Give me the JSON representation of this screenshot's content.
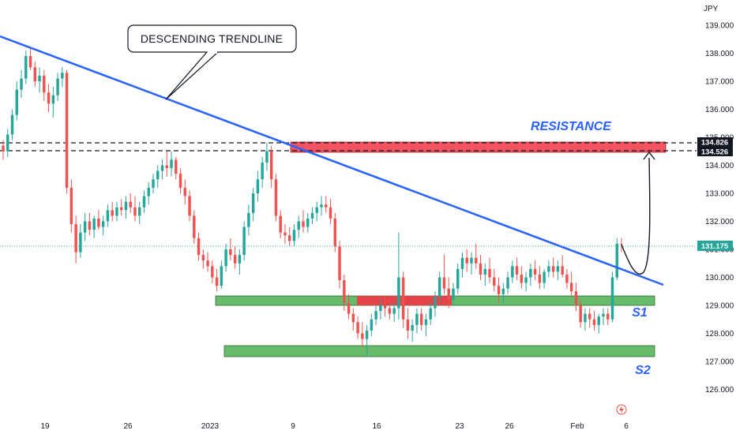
{
  "chart_data": {
    "type": "candlestick",
    "currency_label": "JPY",
    "y_ticks": [
      "126.000",
      "127.000",
      "128.000",
      "129.000",
      "130.000",
      "131.000",
      "132.000",
      "133.000",
      "134.000",
      "135.000",
      "136.000",
      "137.000",
      "138.000",
      "139.000"
    ],
    "y_range": [
      125.4,
      139.6
    ],
    "x_labels": [
      "19",
      "26",
      "2023",
      "9",
      "16",
      "23",
      "26",
      "Feb",
      "6"
    ],
    "price_tags": {
      "current": "131.175",
      "resistance_top": "134.826",
      "resistance_bottom": "134.526"
    },
    "colors": {
      "up": "#26a69a",
      "down": "#ef5350",
      "trendline": "#2962ff",
      "resistance_zone": "#f23645",
      "support_zone": "#4caf50",
      "annotation_text": "#2962ff"
    },
    "annotations": {
      "trendline_label": "DESCENDING TRENDLINE",
      "resistance": "RESISTANCE",
      "support_1": "S1",
      "support_2": "S2"
    },
    "levels": {
      "resistance_zone": [
        134.526,
        134.826
      ],
      "support_1_zone": [
        129.05,
        129.35
      ],
      "support_2_zone": [
        127.2,
        127.6
      ],
      "trendline": {
        "start_price": 138.6,
        "end_price": 129.8
      }
    },
    "grid": false,
    "legend": "none",
    "candles": [
      [
        134.7,
        134.9,
        134.2,
        134.5
      ],
      [
        134.5,
        135.3,
        134.3,
        135.1
      ],
      [
        135.1,
        136.0,
        134.9,
        135.8
      ],
      [
        135.8,
        137.0,
        135.6,
        136.7
      ],
      [
        136.7,
        137.4,
        136.4,
        137.1
      ],
      [
        137.1,
        138.1,
        136.9,
        137.9
      ],
      [
        137.9,
        138.2,
        137.4,
        137.5
      ],
      [
        137.5,
        137.7,
        136.8,
        137.0
      ],
      [
        137.0,
        137.5,
        136.6,
        137.2
      ],
      [
        137.2,
        137.4,
        136.3,
        136.6
      ],
      [
        136.6,
        136.9,
        135.9,
        136.2
      ],
      [
        136.2,
        136.8,
        135.7,
        136.5
      ],
      [
        136.5,
        137.3,
        136.3,
        137.1
      ],
      [
        137.1,
        137.5,
        136.8,
        137.3
      ],
      [
        137.3,
        137.4,
        133.0,
        133.2
      ],
      [
        133.2,
        133.5,
        131.6,
        131.9
      ],
      [
        131.9,
        132.2,
        130.5,
        130.9
      ],
      [
        130.9,
        131.9,
        130.7,
        131.6
      ],
      [
        131.6,
        132.3,
        131.3,
        132.0
      ],
      [
        132.0,
        132.3,
        131.5,
        131.7
      ],
      [
        131.7,
        132.2,
        131.4,
        132.1
      ],
      [
        132.1,
        132.4,
        131.7,
        131.8
      ],
      [
        131.8,
        132.2,
        131.5,
        132.0
      ],
      [
        132.0,
        132.6,
        131.8,
        132.4
      ],
      [
        132.4,
        132.7,
        132.0,
        132.2
      ],
      [
        132.2,
        132.7,
        132.0,
        132.5
      ],
      [
        132.5,
        132.8,
        132.2,
        132.4
      ],
      [
        132.4,
        132.9,
        132.1,
        132.7
      ],
      [
        132.7,
        133.0,
        132.3,
        132.5
      ],
      [
        132.5,
        132.9,
        132.0,
        132.2
      ],
      [
        132.2,
        132.7,
        131.9,
        132.5
      ],
      [
        132.5,
        133.1,
        132.3,
        132.9
      ],
      [
        132.9,
        133.4,
        132.6,
        133.2
      ],
      [
        133.2,
        133.7,
        133.0,
        133.5
      ],
      [
        133.5,
        134.0,
        133.2,
        133.8
      ],
      [
        133.8,
        134.2,
        133.5,
        134.0
      ],
      [
        134.0,
        134.5,
        133.6,
        133.9
      ],
      [
        133.9,
        134.5,
        133.6,
        134.2
      ],
      [
        134.2,
        134.3,
        133.5,
        133.7
      ],
      [
        133.7,
        133.9,
        133.0,
        133.2
      ],
      [
        133.2,
        133.5,
        132.6,
        132.9
      ],
      [
        132.9,
        133.1,
        132.0,
        132.2
      ],
      [
        132.2,
        132.4,
        131.2,
        131.4
      ],
      [
        131.4,
        131.6,
        130.6,
        130.8
      ],
      [
        130.8,
        131.0,
        130.3,
        130.6
      ],
      [
        130.6,
        130.9,
        130.2,
        130.4
      ],
      [
        130.4,
        130.6,
        129.8,
        130.0
      ],
      [
        130.0,
        130.3,
        129.5,
        129.7
      ],
      [
        129.7,
        130.6,
        129.6,
        130.4
      ],
      [
        130.4,
        131.2,
        130.2,
        131.0
      ],
      [
        131.0,
        131.4,
        130.6,
        130.8
      ],
      [
        130.8,
        131.1,
        130.3,
        130.5
      ],
      [
        130.5,
        131.0,
        130.1,
        130.8
      ],
      [
        130.8,
        132.0,
        130.6,
        131.8
      ],
      [
        131.8,
        132.6,
        131.5,
        132.3
      ],
      [
        132.3,
        133.2,
        132.0,
        133.0
      ],
      [
        133.0,
        133.8,
        132.7,
        133.5
      ],
      [
        133.5,
        134.3,
        133.2,
        134.1
      ],
      [
        134.1,
        134.8,
        133.8,
        134.5
      ],
      [
        134.5,
        134.7,
        133.2,
        133.5
      ],
      [
        133.5,
        133.7,
        132.0,
        132.2
      ],
      [
        132.2,
        132.4,
        131.4,
        131.6
      ],
      [
        131.6,
        131.9,
        131.2,
        131.5
      ],
      [
        131.5,
        131.8,
        131.1,
        131.3
      ],
      [
        131.3,
        131.9,
        131.1,
        131.7
      ],
      [
        131.7,
        132.2,
        131.4,
        132.0
      ],
      [
        132.0,
        132.4,
        131.6,
        131.8
      ],
      [
        131.8,
        132.3,
        131.6,
        132.1
      ],
      [
        132.1,
        132.5,
        131.9,
        132.3
      ],
      [
        132.3,
        132.7,
        132.0,
        132.5
      ],
      [
        132.5,
        132.9,
        132.2,
        132.6
      ],
      [
        132.6,
        132.9,
        132.3,
        132.5
      ],
      [
        132.5,
        132.8,
        131.9,
        132.1
      ],
      [
        132.1,
        132.3,
        130.9,
        131.1
      ],
      [
        131.1,
        131.3,
        129.6,
        129.9
      ],
      [
        129.9,
        130.1,
        128.8,
        129.1
      ],
      [
        129.1,
        129.4,
        128.5,
        128.7
      ],
      [
        128.7,
        128.9,
        128.1,
        128.4
      ],
      [
        128.4,
        128.6,
        127.8,
        128.0
      ],
      [
        128.0,
        128.4,
        127.5,
        127.8
      ],
      [
        127.8,
        128.3,
        127.2,
        128.1
      ],
      [
        128.1,
        128.7,
        127.9,
        128.5
      ],
      [
        128.5,
        129.0,
        128.3,
        128.8
      ],
      [
        128.8,
        129.2,
        128.5,
        129.0
      ],
      [
        129.0,
        129.3,
        128.6,
        128.9
      ],
      [
        128.9,
        129.2,
        128.5,
        128.7
      ],
      [
        128.7,
        129.1,
        128.4,
        128.9
      ],
      [
        128.9,
        131.6,
        128.5,
        130.0
      ],
      [
        130.0,
        130.2,
        128.2,
        128.5
      ],
      [
        128.5,
        128.9,
        127.8,
        128.1
      ],
      [
        128.1,
        128.5,
        127.7,
        128.3
      ],
      [
        128.3,
        128.9,
        128.0,
        128.7
      ],
      [
        128.7,
        128.9,
        128.1,
        128.3
      ],
      [
        128.3,
        128.7,
        127.9,
        128.5
      ],
      [
        128.5,
        129.1,
        128.3,
        128.9
      ],
      [
        128.9,
        129.5,
        128.6,
        129.3
      ],
      [
        129.3,
        130.2,
        129.1,
        130.0
      ],
      [
        130.0,
        130.8,
        129.4,
        129.6
      ],
      [
        129.6,
        130.0,
        128.9,
        129.2
      ],
      [
        129.2,
        129.8,
        129.0,
        129.6
      ],
      [
        129.6,
        130.5,
        129.4,
        130.3
      ],
      [
        130.3,
        130.9,
        130.0,
        130.7
      ],
      [
        130.7,
        131.0,
        130.2,
        130.5
      ],
      [
        130.5,
        130.9,
        130.1,
        130.7
      ],
      [
        130.7,
        131.2,
        130.3,
        130.5
      ],
      [
        130.5,
        130.8,
        129.9,
        130.1
      ],
      [
        130.1,
        130.5,
        129.7,
        130.3
      ],
      [
        130.3,
        130.7,
        129.8,
        130.0
      ],
      [
        130.0,
        130.3,
        129.5,
        129.7
      ],
      [
        129.7,
        130.0,
        129.1,
        129.4
      ],
      [
        129.4,
        129.8,
        129.1,
        129.6
      ],
      [
        129.6,
        130.2,
        129.4,
        130.0
      ],
      [
        130.0,
        130.6,
        129.8,
        130.4
      ],
      [
        130.4,
        130.7,
        129.9,
        130.1
      ],
      [
        130.1,
        130.4,
        129.6,
        129.8
      ],
      [
        129.8,
        130.2,
        129.5,
        130.0
      ],
      [
        130.0,
        130.5,
        129.7,
        130.3
      ],
      [
        130.3,
        130.6,
        129.9,
        130.1
      ],
      [
        130.1,
        130.4,
        129.6,
        129.8
      ],
      [
        129.8,
        130.3,
        129.6,
        130.2
      ],
      [
        130.2,
        130.6,
        130.0,
        130.4
      ],
      [
        130.4,
        130.7,
        130.0,
        130.2
      ],
      [
        130.2,
        130.6,
        129.9,
        130.4
      ],
      [
        130.4,
        130.8,
        130.0,
        130.1
      ],
      [
        130.1,
        130.3,
        129.6,
        129.8
      ],
      [
        129.8,
        130.2,
        129.3,
        129.5
      ],
      [
        129.5,
        129.8,
        128.8,
        129.0
      ],
      [
        129.0,
        129.2,
        128.2,
        128.4
      ],
      [
        128.4,
        128.9,
        128.1,
        128.7
      ],
      [
        128.7,
        128.9,
        128.2,
        128.5
      ],
      [
        128.5,
        128.8,
        128.1,
        128.3
      ],
      [
        128.3,
        128.7,
        128.0,
        128.6
      ],
      [
        128.6,
        128.9,
        128.3,
        128.7
      ],
      [
        128.7,
        128.9,
        128.3,
        128.5
      ],
      [
        128.5,
        130.2,
        128.4,
        130.0
      ],
      [
        130.0,
        131.4,
        129.9,
        131.2
      ],
      [
        131.2,
        131.4,
        130.9,
        131.175
      ]
    ]
  }
}
